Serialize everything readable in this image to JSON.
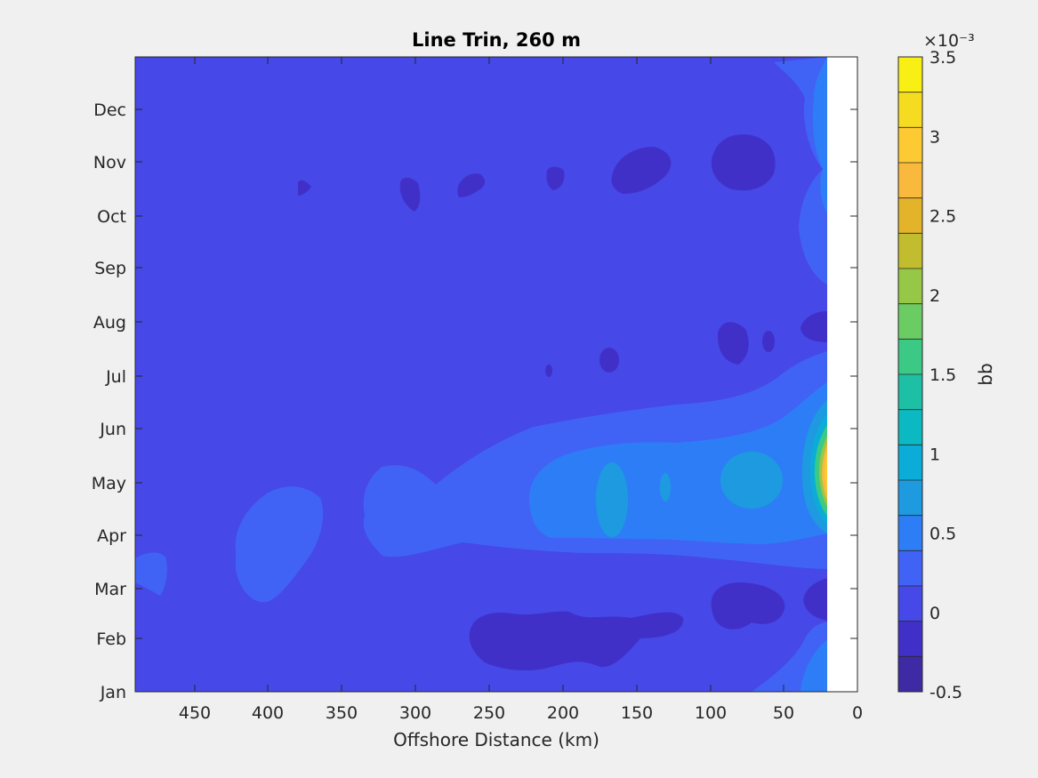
{
  "chart_data": {
    "type": "heatmap",
    "title": "Line Trin, 260 m",
    "xlabel": "Offshore Distance (km)",
    "ylabel": "",
    "xlim": [
      490,
      0
    ],
    "x_reversed": true,
    "x_ticks": [
      "450",
      "400",
      "350",
      "300",
      "250",
      "200",
      "150",
      "100",
      "50",
      "0"
    ],
    "y_ticks": [
      "Jan",
      "Feb",
      "Mar",
      "Apr",
      "May",
      "Jun",
      "Jul",
      "Aug",
      "Sep",
      "Oct",
      "Nov",
      "Dec"
    ],
    "colorbar": {
      "label": "bb",
      "exponent": "×10⁻³",
      "range": [
        -0.5,
        3.5
      ],
      "ticks": [
        "-0.5",
        "0",
        "0.5",
        "1",
        "1.5",
        "2",
        "2.5",
        "3",
        "3.5"
      ],
      "levels": 18,
      "colors": [
        "#3e2aa4",
        "#4130c8",
        "#4648e8",
        "#4163f5",
        "#2d7ef6",
        "#1e9ae0",
        "#0cacd8",
        "#0ab9c2",
        "#1dc0a5",
        "#3cc986",
        "#6bcc63",
        "#97c746",
        "#c1bd2f",
        "#e3b32a",
        "#f8b93c",
        "#fdca33",
        "#f5dc21",
        "#f8f014"
      ]
    },
    "no_data_region_km": [
      0,
      20
    ],
    "notes": "Background values ~0 (blue); small negative patches near Feb-Mar and Oct-Nov; positive band Apr-Jun increasing toward coast; maximum ~3.3e-3 at ~20 km in May."
  }
}
